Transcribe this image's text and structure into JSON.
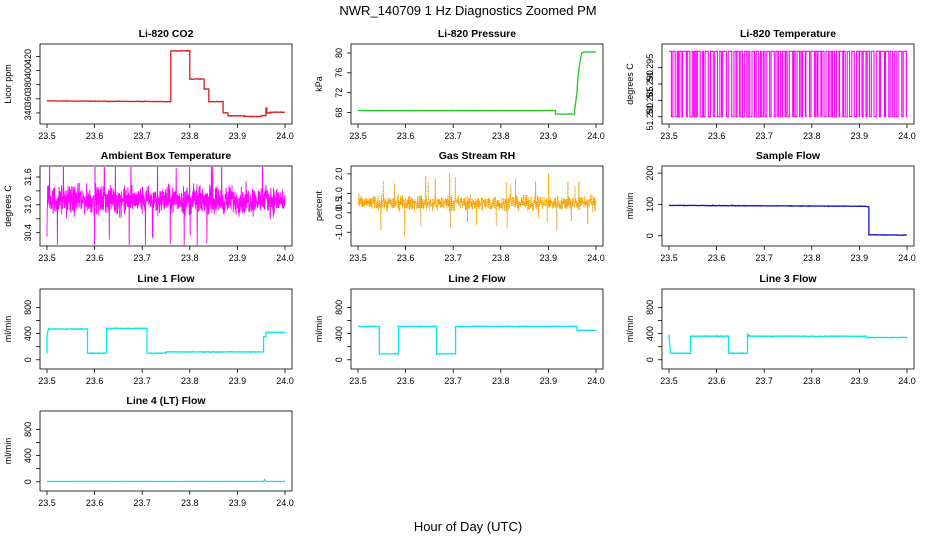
{
  "figure": {
    "title": "NWR_140709  1 Hz Diagnostics Zoomed PM",
    "xlabel": "Hour of Day (UTC)"
  },
  "chart_data": [
    {
      "type": "line",
      "title": "Li-820 CO2",
      "ylabel": "Licor ppm",
      "color": "#dd1c1c",
      "xlim": [
        23.5,
        24.0
      ],
      "ylim": [
        330,
        432
      ],
      "xticks": [
        "23.5",
        "23.6",
        "23.7",
        "23.8",
        "23.9",
        "24.0"
      ],
      "yticks": [
        340,
        360,
        380,
        400,
        420
      ],
      "series": [
        {
          "x": [
            23.5,
            23.76,
            23.76,
            23.8,
            23.8,
            23.83,
            23.83,
            23.84,
            23.84,
            23.87,
            23.87,
            23.88,
            23.88,
            23.915,
            23.915,
            23.95,
            23.95,
            23.96,
            23.96,
            23.962,
            23.962,
            23.97,
            23.97,
            24.0
          ],
          "y": [
            357,
            356,
            428,
            428,
            388,
            388,
            374,
            374,
            356,
            356,
            340,
            340,
            336,
            336,
            335,
            335,
            336,
            336,
            347,
            347,
            340,
            340,
            341,
            341
          ],
          "noise": 0.6
        }
      ]
    },
    {
      "type": "line",
      "title": "Li-820 Pressure",
      "ylabel": "kPa",
      "color": "#1ec81e",
      "xlim": [
        23.5,
        24.0
      ],
      "ylim": [
        66.5,
        81
      ],
      "xticks": [
        "23.5",
        "23.6",
        "23.7",
        "23.8",
        "23.9",
        "24.0"
      ],
      "yticks": [
        68,
        72,
        76,
        80
      ],
      "series": [
        {
          "x": [
            23.5,
            23.915,
            23.915,
            23.955,
            23.955,
            23.96,
            23.963,
            23.967,
            23.97,
            23.975,
            24.0
          ],
          "y": [
            68.4,
            68.4,
            67.7,
            67.7,
            68.5,
            72,
            76,
            78.5,
            80,
            80.2,
            80.2
          ],
          "noise": 0.05
        }
      ]
    },
    {
      "type": "line",
      "title": "Li-820 Temperature",
      "ylabel": "degrees C",
      "color": "#ff00ff",
      "xlim": [
        23.5,
        24.0
      ],
      "ylim": [
        51.279,
        51.301
      ],
      "xticks": [
        "23.5",
        "23.6",
        "23.7",
        "23.8",
        "23.9",
        "24.0"
      ],
      "yticks": [
        51.28,
        51.285,
        51.29,
        51.295
      ],
      "ytick_labels": [
        "51.280",
        "51.285",
        "51.290",
        "51.295"
      ],
      "levels": [
        51.28,
        51.3
      ],
      "style": "binary-toggle"
    },
    {
      "type": "line",
      "title": "Ambient Box Temperature",
      "ylabel": "degrees C",
      "color": "#ff00ff",
      "xlim": [
        23.5,
        24.0
      ],
      "ylim": [
        30.2,
        31.75
      ],
      "xticks": [
        "23.5",
        "23.6",
        "23.7",
        "23.8",
        "23.9",
        "24.0"
      ],
      "yticks": [
        30.4,
        30.7,
        31.0,
        31.3,
        31.6
      ],
      "ytick_labels": [
        "30.4",
        "",
        "31.0",
        "",
        "31.6"
      ],
      "mean": 31.1,
      "noise": 0.45,
      "style": "dense-noise"
    },
    {
      "type": "line",
      "title": "Gas Stream RH",
      "ylabel": "percent",
      "color": "#f5a300",
      "xlim": [
        23.5,
        24.0
      ],
      "ylim": [
        -1.5,
        2.2
      ],
      "xticks": [
        "23.5",
        "23.6",
        "23.7",
        "23.8",
        "23.9",
        "24.0"
      ],
      "yticks": [
        -1.0,
        0.0,
        0.5,
        1.0,
        2.0
      ],
      "ytick_labels": [
        "-1.0",
        "0.0",
        "0.5",
        "1.0",
        "2.0"
      ],
      "mean": 0.5,
      "noise": 0.55,
      "style": "dense-noise-dotted"
    },
    {
      "type": "line",
      "title": "Sample Flow",
      "ylabel": "ml/min",
      "color": "#1010c8",
      "xlim": [
        23.5,
        24.0
      ],
      "ylim": [
        -20,
        210
      ],
      "xticks": [
        "23.5",
        "23.6",
        "23.7",
        "23.8",
        "23.9",
        "24.0"
      ],
      "yticks": [
        0,
        100,
        200
      ],
      "series": [
        {
          "x": [
            23.5,
            23.915,
            23.92,
            23.92,
            24.0
          ],
          "y": [
            97,
            94,
            92,
            3,
            2
          ],
          "noise": 1.2
        }
      ]
    },
    {
      "type": "line",
      "title": "Line 1 Flow",
      "ylabel": "ml/min",
      "color": "#00e8f0",
      "xlim": [
        23.5,
        24.0
      ],
      "ylim": [
        -80,
        1020
      ],
      "xticks": [
        "23.5",
        "23.6",
        "23.7",
        "23.8",
        "23.9",
        "24.0"
      ],
      "yticks": [
        0,
        200,
        400,
        600,
        800
      ],
      "ytick_labels": [
        "0",
        "",
        "400",
        "",
        "800"
      ],
      "series": [
        {
          "x": [
            23.5,
            23.5,
            23.503,
            23.585,
            23.585,
            23.625,
            23.625,
            23.71,
            23.71,
            23.75,
            23.75,
            23.955,
            23.955,
            23.96,
            23.96,
            24.0
          ],
          "y": [
            100,
            380,
            470,
            470,
            100,
            100,
            480,
            480,
            100,
            100,
            120,
            120,
            350,
            350,
            420,
            420
          ],
          "noise": 8
        }
      ]
    },
    {
      "type": "line",
      "title": "Line 2 Flow",
      "ylabel": "ml/min",
      "color": "#00e8f0",
      "xlim": [
        23.5,
        24.0
      ],
      "ylim": [
        -80,
        1020
      ],
      "xticks": [
        "23.5",
        "23.6",
        "23.7",
        "23.8",
        "23.9",
        "24.0"
      ],
      "yticks": [
        0,
        200,
        400,
        600,
        800
      ],
      "ytick_labels": [
        "0",
        "",
        "400",
        "",
        "800"
      ],
      "series": [
        {
          "x": [
            23.5,
            23.545,
            23.545,
            23.585,
            23.585,
            23.665,
            23.665,
            23.705,
            23.705,
            23.96,
            23.96,
            24.0
          ],
          "y": [
            510,
            510,
            90,
            90,
            510,
            510,
            90,
            90,
            510,
            510,
            450,
            450
          ],
          "noise": 6
        }
      ]
    },
    {
      "type": "line",
      "title": "Line 3 Flow",
      "ylabel": "ml/min",
      "color": "#00e8f0",
      "xlim": [
        23.5,
        24.0
      ],
      "ylim": [
        -80,
        1020
      ],
      "xticks": [
        "23.5",
        "23.6",
        "23.7",
        "23.8",
        "23.9",
        "24.0"
      ],
      "yticks": [
        0,
        200,
        400,
        600,
        800
      ],
      "ytick_labels": [
        "0",
        "",
        "400",
        "",
        "800"
      ],
      "series": [
        {
          "x": [
            23.5,
            23.5,
            23.503,
            23.545,
            23.545,
            23.625,
            23.625,
            23.665,
            23.665,
            23.668,
            23.668,
            23.915,
            23.915,
            24.0
          ],
          "y": [
            380,
            380,
            100,
            100,
            360,
            360,
            100,
            100,
            380,
            380,
            360,
            360,
            340,
            340
          ],
          "noise": 8
        }
      ]
    },
    {
      "type": "line",
      "title": "Line 4 (LT) Flow",
      "ylabel": "ml/min",
      "color": "#00e8f0",
      "xlim": [
        23.5,
        24.0
      ],
      "ylim": [
        -80,
        1020
      ],
      "xticks": [
        "23.5",
        "23.6",
        "23.7",
        "23.8",
        "23.9",
        "24.0"
      ],
      "yticks": [
        0,
        200,
        400,
        600,
        800
      ],
      "ytick_labels": [
        "0",
        "",
        "400",
        "",
        "800"
      ],
      "series": [
        {
          "x": [
            23.5,
            23.955,
            23.957,
            23.96,
            23.963,
            24.0
          ],
          "y": [
            5,
            5,
            35,
            5,
            5,
            5
          ],
          "noise": 1.5
        }
      ]
    }
  ]
}
